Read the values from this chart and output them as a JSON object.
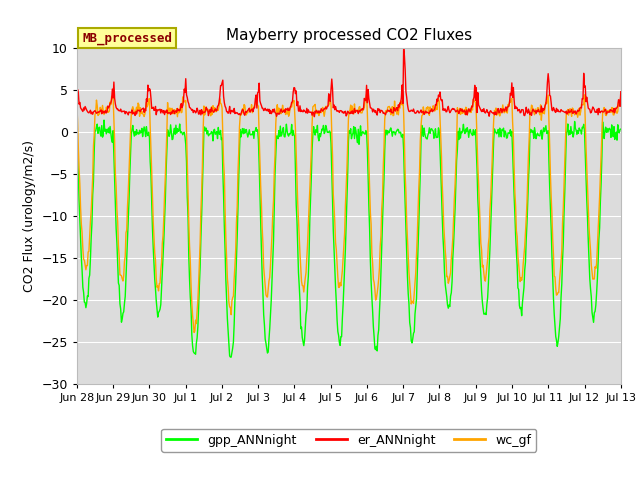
{
  "title": "Mayberry processed CO2 Fluxes",
  "ylabel": "CO2 Flux (urology/m2/s)",
  "ylim": [
    -30,
    10
  ],
  "yticks": [
    -30,
    -25,
    -20,
    -15,
    -10,
    -5,
    0,
    5,
    10
  ],
  "color_gpp": "#00FF00",
  "color_er": "#FF0000",
  "color_wc": "#FFA500",
  "legend_label": "MB_processed",
  "legend_bg": "#FFFF99",
  "legend_edge": "#AAAA00",
  "legend_text_color": "#8B0000",
  "bg_color": "#DCDCDC",
  "line_width": 1.0,
  "xtick_labels": [
    "Jun 28",
    "Jun 29",
    "Jun 30",
    "Jul 1",
    "Jul 2",
    "Jul 3",
    "Jul 4",
    "Jul 5",
    "Jul 6",
    "Jul 7",
    "Jul 8",
    "Jul 9",
    "Jul 10",
    "Jul 11",
    "Jul 12",
    "Jul 13"
  ],
  "n_points_per_day": 48,
  "n_days": 15
}
